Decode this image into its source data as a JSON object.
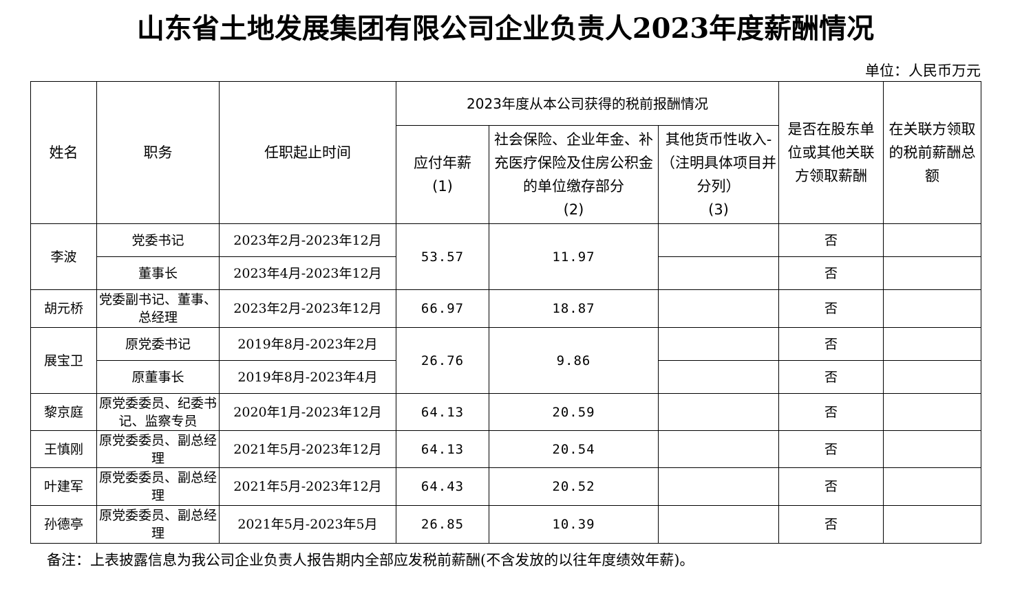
{
  "title": "山东省土地发展集团有限公司企业负责人2023年度薪酬情况",
  "unit": "单位：人民币万元",
  "headers": {
    "name": "姓名",
    "position": "职务",
    "term": "任职起止时间",
    "group": "2023年度从本公司获得的税前报酬情况",
    "salary": "应付年薪",
    "salary_idx": "(1)",
    "insurance": "社会保险、企业年金、补充医疗保险及住房公积金的单位缴存部分",
    "insurance_idx": "(2)",
    "other": "其他货币性收入-（注明具体项目并分列）",
    "other_idx": "(3)",
    "shareholder": "是否在股东单位或其他关联方领取薪酬",
    "related": "在关联方领取的税前薪酬总额"
  },
  "rows": [
    {
      "name": "李波",
      "positions": [
        {
          "title": "党委书记",
          "term": "2023年2月-2023年12月",
          "other": "",
          "shareholder": "否",
          "related": ""
        },
        {
          "title": "董事长",
          "term": "2023年4月-2023年12月",
          "other": "",
          "shareholder": "否",
          "related": ""
        }
      ],
      "salary": "53.57",
      "insurance": "11.97"
    },
    {
      "name": "胡元桥",
      "positions": [
        {
          "title": "党委副书记、董事、总经理",
          "term": "2023年2月-2023年12月",
          "other": "",
          "shareholder": "否",
          "related": ""
        }
      ],
      "salary": "66.97",
      "insurance": "18.87"
    },
    {
      "name": "展宝卫",
      "positions": [
        {
          "title": "原党委书记",
          "term": "2019年8月-2023年2月",
          "other": "",
          "shareholder": "否",
          "related": ""
        },
        {
          "title": "原董事长",
          "term": "2019年8月-2023年4月",
          "other": "",
          "shareholder": "否",
          "related": ""
        }
      ],
      "salary": "26.76",
      "insurance": "9.86"
    },
    {
      "name": "黎京庭",
      "positions": [
        {
          "title": "原党委委员、纪委书记、监察专员",
          "term": "2020年1月-2023年12月",
          "other": "",
          "shareholder": "否",
          "related": ""
        }
      ],
      "salary": "64.13",
      "insurance": "20.59"
    },
    {
      "name": "王慎刚",
      "positions": [
        {
          "title": "原党委委员、副总经理",
          "term": "2021年5月-2023年12月",
          "other": "",
          "shareholder": "否",
          "related": ""
        }
      ],
      "salary": "64.13",
      "insurance": "20.54"
    },
    {
      "name": "叶建军",
      "positions": [
        {
          "title": "原党委委员、副总经理",
          "term": "2021年5月-2023年12月",
          "other": "",
          "shareholder": "否",
          "related": ""
        }
      ],
      "salary": "64.43",
      "insurance": "20.52"
    },
    {
      "name": "孙德亭",
      "positions": [
        {
          "title": "原党委委员、副总经理",
          "term": "2021年5月-2023年5月",
          "other": "",
          "shareholder": "否",
          "related": ""
        }
      ],
      "salary": "26.85",
      "insurance": "10.39"
    }
  ],
  "note": "备注：上表披露信息为我公司企业负责人报告期内全部应发税前薪酬(不含发放的以往年度绩效年薪)。"
}
